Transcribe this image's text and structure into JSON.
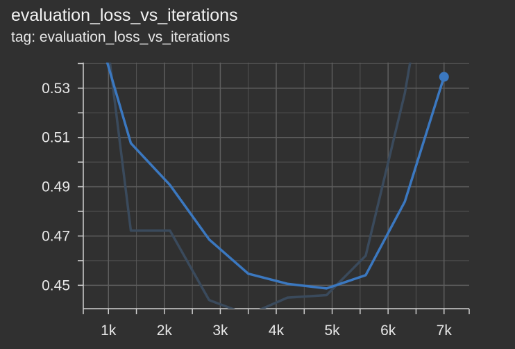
{
  "header": {
    "title": "evaluation_loss_vs_iterations",
    "subtitle": "tag: evaluation_loss_vs_iterations"
  },
  "colors": {
    "background": "#303030",
    "grid": "#5e5e5e",
    "smoothed_line": "#3b78c0",
    "raw_line": "#3a4a5c"
  },
  "chart_data": {
    "type": "line",
    "title": "evaluation_loss_vs_iterations",
    "xlabel": "",
    "ylabel": "",
    "xlim": [
      550,
      7450
    ],
    "ylim": [
      0.4405,
      0.5404
    ],
    "x_ticks": [
      1000,
      2000,
      3000,
      4000,
      5000,
      6000,
      7000
    ],
    "x_tick_labels": [
      "1k",
      "2k",
      "3k",
      "4k",
      "5k",
      "6k",
      "7k"
    ],
    "y_ticks": [
      0.45,
      0.47,
      0.49,
      0.51,
      0.53
    ],
    "y_tick_labels": [
      "0.45",
      "0.47",
      "0.49",
      "0.51",
      "0.53"
    ],
    "grid": true,
    "series": [
      {
        "role": "smoothed",
        "x": [
          700,
          1400,
          2100,
          2800,
          3500,
          4200,
          4900,
          5600,
          6300,
          7000
        ],
        "values": [
          0.562,
          0.5077,
          0.4907,
          0.4686,
          0.4547,
          0.4506,
          0.4487,
          0.4541,
          0.484,
          0.5346
        ],
        "last_point_marker": true
      },
      {
        "role": "raw",
        "x": [
          700,
          1400,
          2100,
          2800,
          3500,
          4200,
          4900,
          5600,
          6300,
          7000
        ],
        "values": [
          0.6,
          0.4722,
          0.4722,
          0.444,
          0.438,
          0.445,
          0.446,
          0.462,
          0.528,
          0.62
        ]
      }
    ]
  }
}
